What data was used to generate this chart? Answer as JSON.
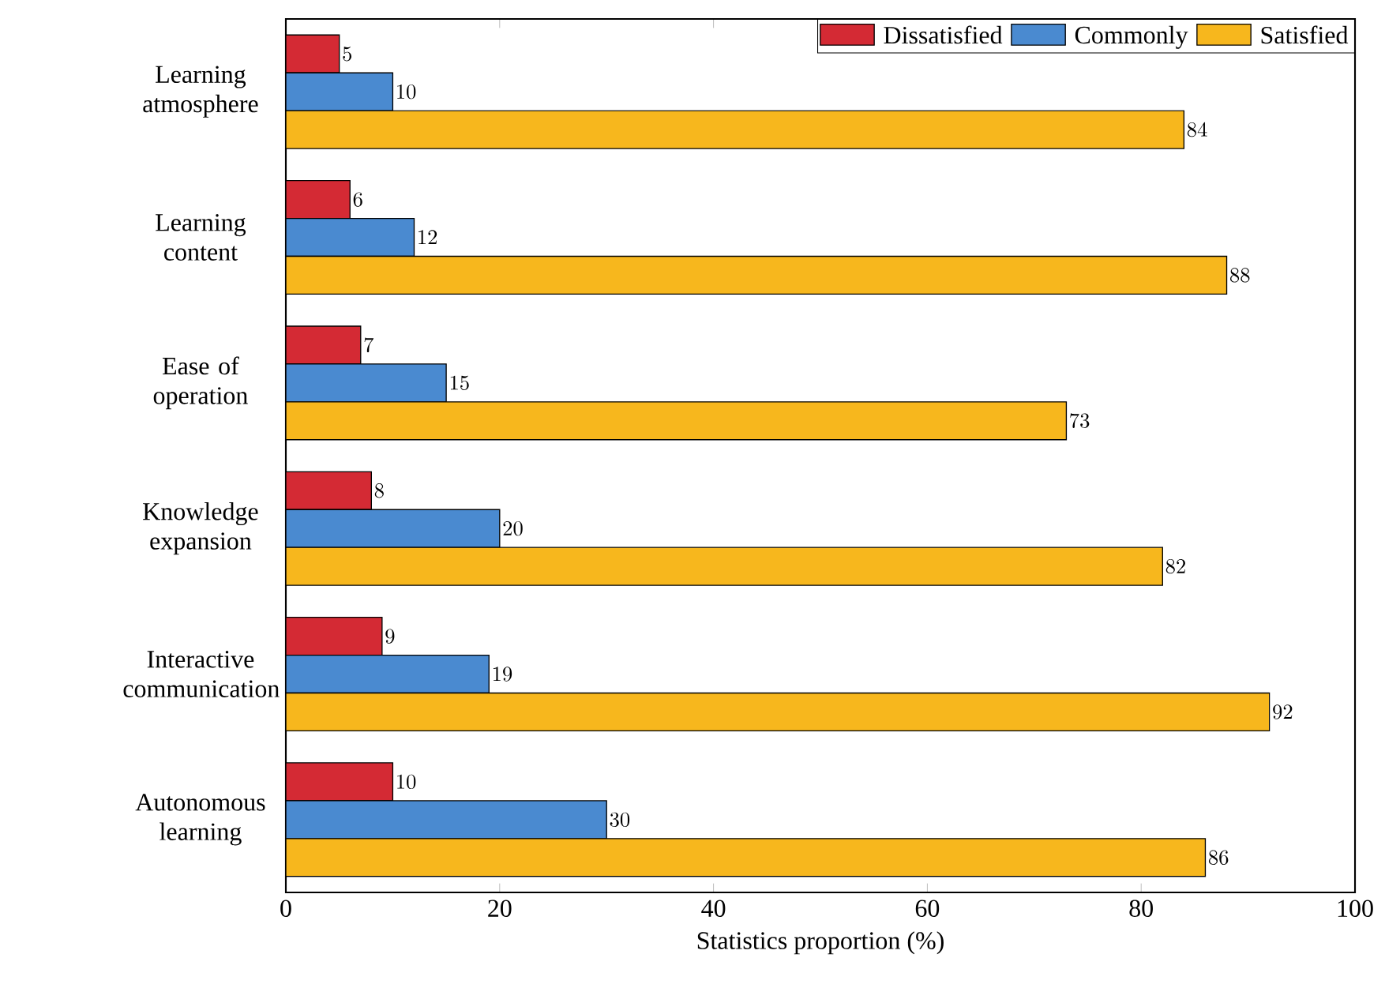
{
  "chart_data": {
    "type": "bar",
    "orientation": "horizontal",
    "xlabel": "Statistics proportion (%)",
    "categories": [
      "Learning atmosphere",
      "Learning content",
      "Ease of operation",
      "Knowledge expansion",
      "Interactive communication",
      "Autonomous learning"
    ],
    "series": [
      {
        "name": "Dissatisfied",
        "color": "#d42a34",
        "values": [
          5,
          6,
          7,
          8,
          9,
          10
        ]
      },
      {
        "name": "Commonly",
        "color": "#4a8ad0",
        "values": [
          10,
          12,
          15,
          20,
          19,
          30
        ]
      },
      {
        "name": "Satisfied",
        "color": "#f7b71d",
        "values": [
          84,
          88,
          73,
          82,
          92,
          86
        ]
      }
    ],
    "xlim": [
      0,
      100
    ],
    "xticks": [
      0,
      20,
      40,
      60,
      80,
      100
    ],
    "data_labels": true,
    "legend": "top right",
    "grid": false
  }
}
